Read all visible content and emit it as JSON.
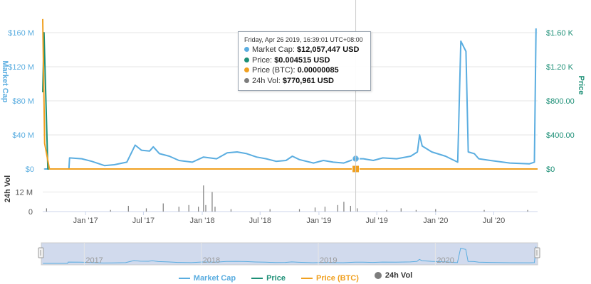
{
  "chart_data": {
    "type": "line",
    "left_axis": {
      "title": "Market Cap",
      "ticks": [
        {
          "value": 160000000,
          "label": "$160 M"
        },
        {
          "value": 120000000,
          "label": "$120 M"
        },
        {
          "value": 80000000,
          "label": "$80 M"
        },
        {
          "value": 40000000,
          "label": "$40 M"
        },
        {
          "value": 0,
          "label": "$0"
        }
      ],
      "ylim": [
        0,
        175000000
      ]
    },
    "right_axis": {
      "title": "Price",
      "ticks": [
        {
          "value": 1600,
          "label": "$1.60 K"
        },
        {
          "value": 1200,
          "label": "$1.20 K"
        },
        {
          "value": 800,
          "label": "$800.00"
        },
        {
          "value": 400,
          "label": "$400.00"
        },
        {
          "value": 0,
          "label": "$0"
        }
      ]
    },
    "volume_axis": {
      "title": "24h Vol",
      "ticks": [
        {
          "value": 12000000,
          "label": "12 M"
        },
        {
          "value": 0,
          "label": "0"
        }
      ],
      "ylim": [
        0,
        20000000
      ]
    },
    "x_range": [
      "2016-08-20",
      "2020-11-15"
    ],
    "x_ticks": [
      "Jan '17",
      "Jul '17",
      "Jan '18",
      "Jul '18",
      "Jan '19",
      "Jul '19",
      "Jan '20",
      "Jul '20"
    ],
    "navigator_labels": [
      "2017",
      "2018",
      "2019",
      "2020"
    ],
    "series": [
      {
        "name": "Market Cap",
        "color": "#5aade0",
        "axis": "left",
        "points": [
          [
            "2016-08-25",
            0
          ],
          [
            "2016-11-10",
            0
          ],
          [
            "2016-11-12",
            13000000
          ],
          [
            "2016-12-20",
            12000000
          ],
          [
            "2017-01-20",
            9000000
          ],
          [
            "2017-03-01",
            4000000
          ],
          [
            "2017-04-01",
            5000000
          ],
          [
            "2017-05-10",
            8000000
          ],
          [
            "2017-06-05",
            28000000
          ],
          [
            "2017-06-25",
            22000000
          ],
          [
            "2017-07-20",
            21000000
          ],
          [
            "2017-08-01",
            26000000
          ],
          [
            "2017-08-20",
            18000000
          ],
          [
            "2017-09-20",
            15000000
          ],
          [
            "2017-10-20",
            10000000
          ],
          [
            "2017-12-01",
            8000000
          ],
          [
            "2018-01-05",
            14000000
          ],
          [
            "2018-02-15",
            12000000
          ],
          [
            "2018-03-20",
            19000000
          ],
          [
            "2018-04-20",
            20000000
          ],
          [
            "2018-05-20",
            18000000
          ],
          [
            "2018-06-20",
            14000000
          ],
          [
            "2018-07-20",
            12000000
          ],
          [
            "2018-08-20",
            9000000
          ],
          [
            "2018-09-20",
            10000000
          ],
          [
            "2018-10-10",
            15000000
          ],
          [
            "2018-11-01",
            11000000
          ],
          [
            "2018-12-15",
            7000000
          ],
          [
            "2019-01-15",
            10000000
          ],
          [
            "2019-02-15",
            8000000
          ],
          [
            "2019-03-20",
            7000000
          ],
          [
            "2019-04-26",
            12057447
          ],
          [
            "2019-05-20",
            12000000
          ],
          [
            "2019-06-20",
            10000000
          ],
          [
            "2019-07-20",
            13000000
          ],
          [
            "2019-09-01",
            12000000
          ],
          [
            "2019-10-15",
            15000000
          ],
          [
            "2019-11-05",
            20000000
          ],
          [
            "2019-11-12",
            40000000
          ],
          [
            "2019-11-20",
            27000000
          ],
          [
            "2019-12-20",
            20000000
          ],
          [
            "2020-02-01",
            15000000
          ],
          [
            "2020-03-10",
            8000000
          ],
          [
            "2020-03-20",
            150000000
          ],
          [
            "2020-04-05",
            138000000
          ],
          [
            "2020-04-12",
            20000000
          ],
          [
            "2020-05-01",
            18000000
          ],
          [
            "2020-05-15",
            12000000
          ],
          [
            "2020-06-20",
            10000000
          ],
          [
            "2020-08-20",
            7000000
          ],
          [
            "2020-10-20",
            6000000
          ],
          [
            "2020-11-05",
            8000000
          ],
          [
            "2020-11-10",
            165000000
          ]
        ]
      },
      {
        "name": "Price",
        "color": "#1c8f76",
        "axis": "right",
        "points": [
          [
            "2016-08-20",
            900
          ],
          [
            "2016-08-24",
            1600
          ],
          [
            "2016-09-05",
            0
          ],
          [
            "2020-11-15",
            0
          ]
        ]
      },
      {
        "name": "Price (BTC)",
        "color": "#f0a020",
        "axis": "right",
        "points": [
          [
            "2016-08-20",
            1760
          ],
          [
            "2016-08-26",
            300
          ],
          [
            "2016-09-10",
            0
          ],
          [
            "2020-11-15",
            0
          ]
        ]
      },
      {
        "name": "24h Vol",
        "color": "#7d7d7d",
        "axis": "volume",
        "type": "column",
        "points": [
          [
            "2016-09-01",
            2000000
          ],
          [
            "2017-03-20",
            1000000
          ],
          [
            "2017-05-15",
            3500000
          ],
          [
            "2017-07-10",
            2000000
          ],
          [
            "2017-09-01",
            5000000
          ],
          [
            "2017-10-20",
            3000000
          ],
          [
            "2017-11-20",
            4000000
          ],
          [
            "2017-12-20",
            3000000
          ],
          [
            "2018-01-05",
            16000000
          ],
          [
            "2018-01-12",
            4000000
          ],
          [
            "2018-02-01",
            12000000
          ],
          [
            "2018-02-10",
            3000000
          ],
          [
            "2018-04-01",
            1500000
          ],
          [
            "2018-08-01",
            1500000
          ],
          [
            "2018-11-01",
            1500000
          ],
          [
            "2018-12-20",
            2500000
          ],
          [
            "2019-01-20",
            3000000
          ],
          [
            "2019-03-01",
            4000000
          ],
          [
            "2019-03-20",
            6000000
          ],
          [
            "2019-04-10",
            3500000
          ],
          [
            "2019-05-01",
            2000000
          ],
          [
            "2019-08-01",
            1000000
          ],
          [
            "2019-09-15",
            2000000
          ],
          [
            "2019-11-01",
            1000000
          ],
          [
            "2020-01-01",
            1500000
          ],
          [
            "2020-06-01",
            1000000
          ],
          [
            "2020-10-15",
            1000000
          ]
        ]
      }
    ],
    "tooltip": {
      "date": "Friday, Apr 26 2019, 16:39:01 UTC+08:00",
      "x": "2019-04-26",
      "rows": [
        {
          "label": "Market Cap:",
          "value": "$12,057,447 USD",
          "color": "#5aade0"
        },
        {
          "label": "Price:",
          "value": "$0.004515 USD",
          "color": "#1c8f76"
        },
        {
          "label": "Price (BTC):",
          "value": "0.00000085",
          "color": "#f0a020"
        },
        {
          "label": "24h Vol:",
          "value": "$770,961 USD",
          "color": "#7d7d7d"
        }
      ]
    },
    "legend": [
      {
        "label": "Market Cap",
        "color": "#5aade0",
        "shape": "line"
      },
      {
        "label": "Price",
        "color": "#1c8f76",
        "shape": "line"
      },
      {
        "label": "Price (BTC)",
        "color": "#f0a020",
        "shape": "line"
      },
      {
        "label": "24h Vol",
        "color": "#7d7d7d",
        "shape": "dot"
      }
    ],
    "legend_placement": "bottom-center",
    "grid": true
  }
}
